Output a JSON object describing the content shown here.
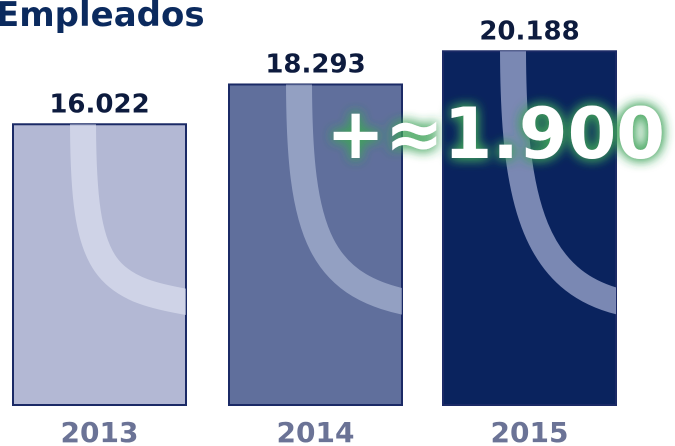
{
  "chart_data": {
    "type": "bar",
    "title": "Empleados",
    "categories": [
      "2013",
      "2014",
      "2015"
    ],
    "values": [
      16022,
      18293,
      20188
    ],
    "value_labels": [
      "16.022",
      "18.293",
      "20.188"
    ],
    "colors": [
      "#b3b8d4",
      "#606f9c",
      "#0a235e"
    ],
    "ylim": [
      0,
      23000
    ],
    "annotation": "+≈1.900"
  }
}
